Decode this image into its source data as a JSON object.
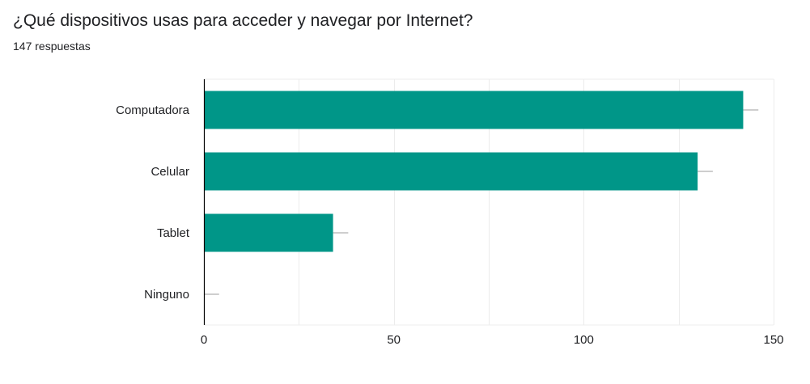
{
  "title": "¿Qué dispositivos usas para acceder y navegar por Internet?",
  "subtitle": "147 respuestas",
  "colors": {
    "bar": "#009688",
    "grid": "#ececec",
    "axis": "#000000",
    "errorbar": "#9e9e9e"
  },
  "chart_data": {
    "type": "bar",
    "orientation": "horizontal",
    "categories": [
      "Computadora",
      "Celular",
      "Tablet",
      "Ninguno"
    ],
    "values": [
      142,
      130,
      34,
      0
    ],
    "error_upper": [
      146,
      134,
      38,
      4
    ],
    "xlim": [
      0,
      150
    ],
    "xticks": [
      0,
      50,
      100,
      150
    ],
    "xtick_labels": [
      "0",
      "50",
      "100",
      "150"
    ],
    "grid": true,
    "legend": "none"
  }
}
